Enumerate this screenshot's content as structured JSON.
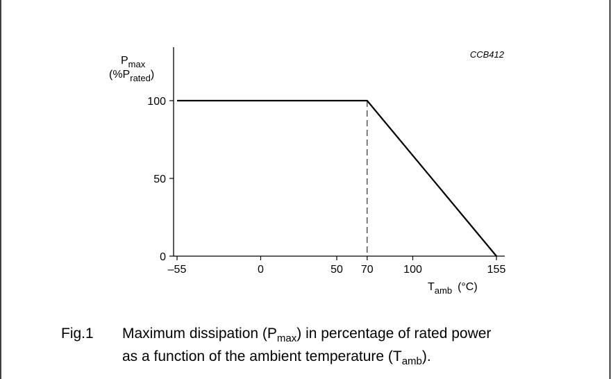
{
  "chart_data": {
    "type": "line",
    "code": "CCB412",
    "y_label": {
      "main": "P",
      "sub": "max",
      "line2_pre": "(%P",
      "line2_sub": "rated",
      "line2_post": ")"
    },
    "x_label": {
      "main": "T",
      "sub": "amb",
      "unit": "(°C)"
    },
    "xlim": [
      -55,
      155
    ],
    "ylim": [
      0,
      100
    ],
    "x_ticks": [
      -55,
      0,
      50,
      70,
      100,
      155
    ],
    "x_tick_labels": [
      "–55",
      "0",
      "50",
      "70",
      "100",
      "155"
    ],
    "y_ticks": [
      0,
      50,
      100
    ],
    "y_tick_labels": [
      "0",
      "50",
      "100"
    ],
    "series": [
      {
        "x": [
          -55,
          70,
          155
        ],
        "y": [
          100,
          100,
          0
        ]
      }
    ],
    "reference_line": {
      "x": 70,
      "style": "dashed"
    },
    "grid": false
  },
  "caption": {
    "number": "Fig.1",
    "line1_pre": "Maximum dissipation (P",
    "line1_sub": "max",
    "line1_post": ") in percentage of rated power",
    "line2_pre": "as a function of the ambient temperature (T",
    "line2_sub": "amb",
    "line2_post": ")."
  }
}
